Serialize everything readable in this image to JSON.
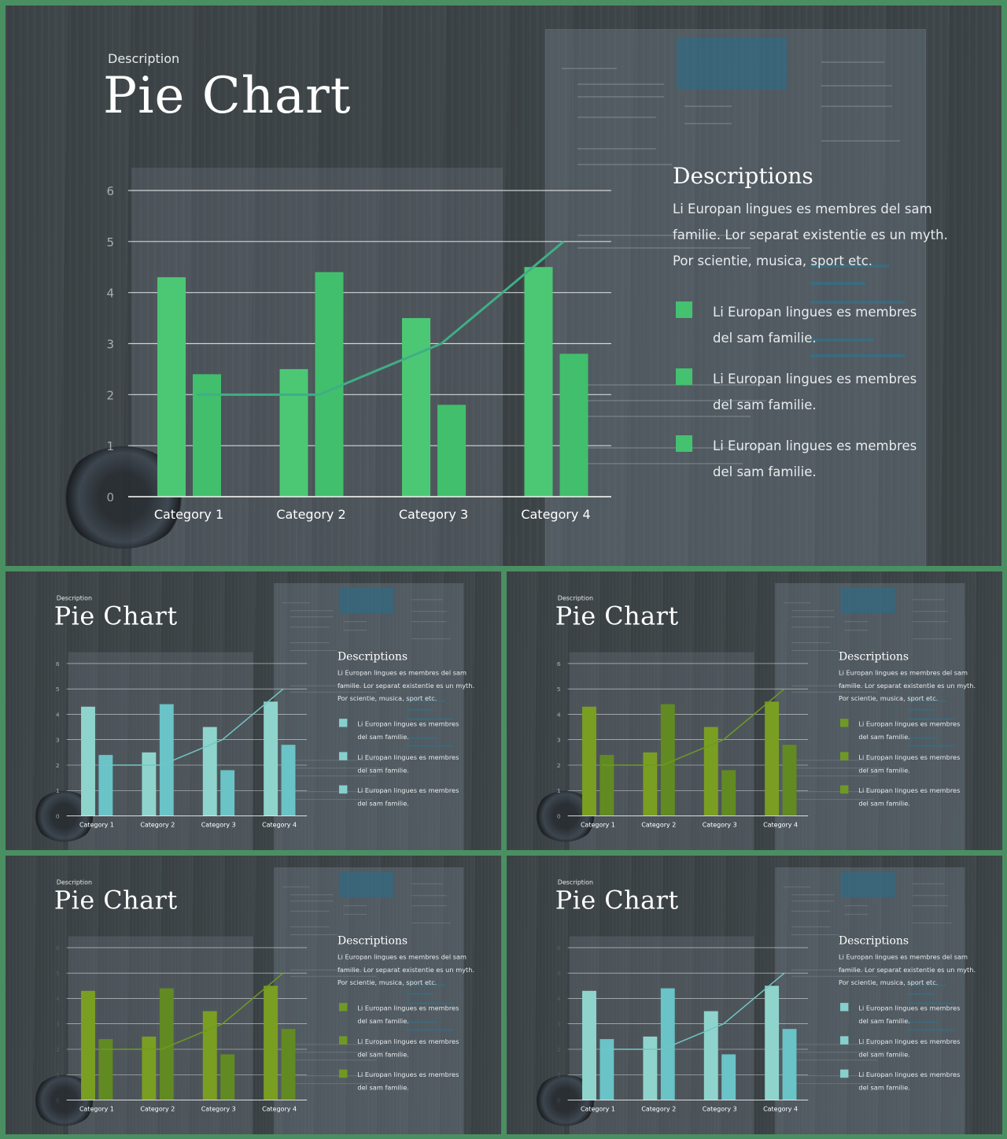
{
  "slide": {
    "kicker": "Description",
    "title": "Pie Chart",
    "right_title": "Descriptions",
    "right_paragraph": "Li Europan lingues es membres del sam familie. Lor separat existentie es un myth. Por scientie, musica, sport etc.",
    "items": [
      "Li Europan lingues es membres del sam familie.",
      "Li Europan lingues es membres del sam familie.",
      "Li Europan lingues es membres del sam familie."
    ]
  },
  "themes": [
    {
      "name": "green",
      "bar1": "#4cc874",
      "bar2": "#42bf6c",
      "line": "#3fae86",
      "square": "#44c270"
    },
    {
      "name": "teal",
      "bar1": "#8fd4cc",
      "bar2": "#6ac3c6",
      "line": "#72c6c4",
      "square": "#86cfcc"
    },
    {
      "name": "olive",
      "bar1": "#7a9e22",
      "bar2": "#628a22",
      "line": "#6e9a22",
      "square": "#709824"
    },
    {
      "name": "olive",
      "bar1": "#7a9e22",
      "bar2": "#628a22",
      "line": "#6e9a22",
      "square": "#709824"
    },
    {
      "name": "teal",
      "bar1": "#8fd4cc",
      "bar2": "#6ac3c6",
      "line": "#72c6c4",
      "square": "#86cfcc"
    }
  ],
  "chart_data": {
    "type": "bar",
    "categories": [
      "Category 1",
      "Category 2",
      "Category 3",
      "Category 4"
    ],
    "series": [
      {
        "type": "bar",
        "values": [
          4.3,
          2.5,
          3.5,
          4.5
        ]
      },
      {
        "type": "bar",
        "values": [
          2.4,
          4.4,
          1.8,
          2.8
        ]
      },
      {
        "type": "line",
        "values": [
          2,
          2,
          3,
          5
        ]
      }
    ],
    "yticks": [
      "0",
      "1",
      "2",
      "3",
      "4",
      "5",
      "6"
    ],
    "ylim": [
      0,
      6
    ],
    "grid": true
  }
}
